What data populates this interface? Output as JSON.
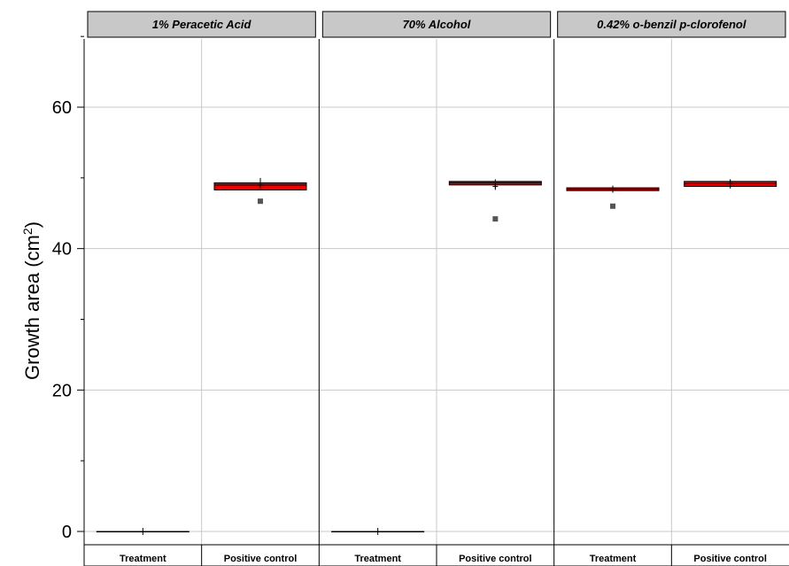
{
  "chart_data": {
    "type": "box",
    "ylabel": "Growth area (cm",
    "ylabel_sup": "2",
    "ylabel_close": ")",
    "ylim": [
      -2,
      70
    ],
    "yticks": [
      0,
      20,
      40,
      60
    ],
    "ytick_labels": [
      "0",
      "20",
      "40",
      "60"
    ],
    "grid": true,
    "panels": [
      {
        "label": "1% Peracetic Acid",
        "groups": [
          {
            "category": "Treatment",
            "q1": 0,
            "median": 0,
            "q3": 0,
            "whisker_low": 0,
            "whisker_high": 0,
            "mean": 0,
            "outliers": []
          },
          {
            "category": "Positive control",
            "q1": 48.3,
            "median": 49.0,
            "q3": 49.3,
            "whisker_low": 48.3,
            "whisker_high": 50.0,
            "mean": 49.0,
            "outliers": [
              46.7
            ]
          }
        ]
      },
      {
        "label": "70% Alcohol",
        "groups": [
          {
            "category": "Treatment",
            "q1": 0,
            "median": 0,
            "q3": 0,
            "whisker_low": 0,
            "whisker_high": 0,
            "mean": 0,
            "outliers": []
          },
          {
            "category": "Positive control",
            "q1": 49.0,
            "median": 49.3,
            "q3": 49.5,
            "whisker_low": 48.5,
            "whisker_high": 49.8,
            "mean": 48.8,
            "outliers": [
              44.2
            ]
          }
        ]
      },
      {
        "label": "0.42% o-benzil p-clorofenol",
        "groups": [
          {
            "category": "Treatment",
            "q1": 48.2,
            "median": 48.4,
            "q3": 48.6,
            "whisker_low": 48.0,
            "whisker_high": 48.8,
            "mean": 48.4,
            "outliers": [
              46.0
            ]
          },
          {
            "category": "Positive control",
            "q1": 48.8,
            "median": 49.2,
            "q3": 49.5,
            "whisker_low": 48.5,
            "whisker_high": 49.8,
            "mean": 49.2,
            "outliers": []
          }
        ]
      }
    ],
    "colors": {
      "box_fill": "#ee0000",
      "box_stroke": "#000000",
      "outlier": "#555555",
      "panel_header": "#c8c8c8",
      "grid": "#c8c8c8"
    }
  }
}
